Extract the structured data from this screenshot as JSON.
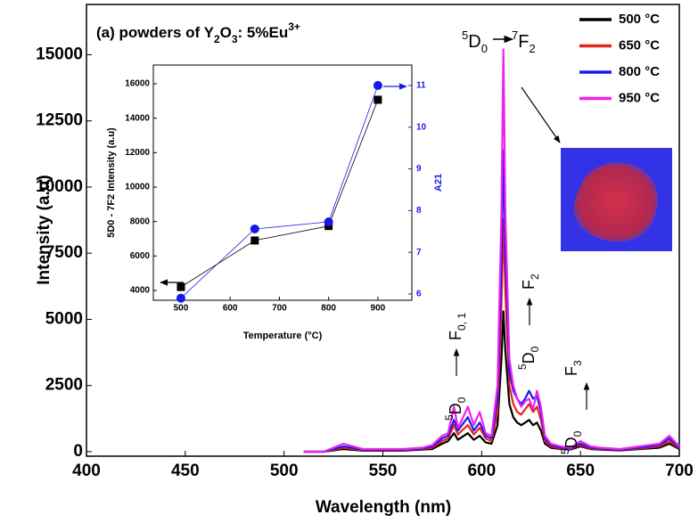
{
  "chart_data": [
    {
      "type": "line",
      "title_parts": [
        "(a) powders of Y",
        "2",
        "O",
        "3",
        ": 5%Eu",
        "3+"
      ],
      "peak_main": [
        "5",
        "D",
        "0",
        "7",
        "F",
        "2"
      ],
      "peak_01": [
        "5",
        "D",
        "0",
        "F",
        "0, 1"
      ],
      "peak_2": [
        "5",
        "D",
        "0",
        "F",
        "2"
      ],
      "peak_3": [
        "5",
        "D",
        "0",
        "F",
        "3"
      ],
      "x_label": "Wavelength (nm)",
      "y_label": "Intensity (a.u)",
      "x": [
        510,
        520,
        530,
        540,
        550,
        560,
        570,
        575,
        580,
        583,
        586,
        588,
        590,
        593,
        596,
        599,
        602,
        605,
        608,
        610,
        611,
        612,
        614,
        616,
        618,
        620,
        622,
        624,
        626,
        628,
        630,
        632,
        635,
        640,
        645,
        650,
        655,
        660,
        670,
        680,
        690,
        695,
        700
      ],
      "series": [
        {
          "name": "500 °C",
          "color": "#000000",
          "values": [
            0,
            0,
            100,
            40,
            40,
            40,
            80,
            100,
            300,
            400,
            700,
            450,
            550,
            700,
            450,
            600,
            350,
            300,
            1000,
            3500,
            5300,
            3800,
            1800,
            1300,
            1100,
            1000,
            1100,
            1200,
            1000,
            1100,
            800,
            300,
            150,
            100,
            80,
            200,
            100,
            80,
            50,
            100,
            150,
            300,
            100
          ]
        },
        {
          "name": "650 °C",
          "color": "#e8231a",
          "values": [
            0,
            0,
            150,
            60,
            60,
            60,
            100,
            150,
            400,
            500,
            1000,
            650,
            800,
            1000,
            650,
            900,
            500,
            400,
            1500,
            5500,
            8800,
            6000,
            2500,
            1800,
            1500,
            1400,
            1600,
            1800,
            1500,
            1700,
            1200,
            400,
            200,
            120,
            100,
            250,
            120,
            100,
            70,
            120,
            200,
            400,
            120
          ]
        },
        {
          "name": "800 °C",
          "color": "#1a1ae8",
          "values": [
            0,
            0,
            200,
            80,
            80,
            80,
            120,
            200,
            500,
            600,
            1200,
            800,
            1000,
            1300,
            800,
            1100,
            600,
            500,
            2000,
            7000,
            11400,
            7500,
            3000,
            2300,
            2000,
            1800,
            2000,
            2300,
            2000,
            2100,
            1500,
            500,
            250,
            150,
            120,
            300,
            150,
            120,
            80,
            150,
            250,
            500,
            150
          ]
        },
        {
          "name": "950 °C",
          "color": "#f020f0",
          "values": [
            0,
            0,
            300,
            100,
            100,
            100,
            150,
            250,
            600,
            700,
            1700,
            900,
            1200,
            1700,
            1000,
            1500,
            700,
            600,
            2500,
            9000,
            15200,
            9000,
            3500,
            2500,
            2000,
            1700,
            1900,
            2000,
            1600,
            2300,
            1700,
            600,
            300,
            200,
            150,
            400,
            200,
            150,
            100,
            200,
            300,
            600,
            200
          ]
        }
      ],
      "xlim": [
        400,
        700
      ],
      "xticks": [
        400,
        450,
        500,
        550,
        600,
        650,
        700
      ],
      "ylim": [
        -170,
        16900
      ],
      "yticks": [
        0,
        2500,
        5000,
        7500,
        10000,
        12500,
        15000
      ]
    },
    {
      "type": "line",
      "x_label": "Temperature (°C)",
      "y_label": "5D0 -  7F2 Intensity (a.u)",
      "y2_label": "A21",
      "x": [
        500,
        650,
        800,
        900
      ],
      "series": [
        {
          "color": "#000000",
          "marker": "square",
          "values": [
            4200,
            6900,
            7740,
            15070
          ]
        },
        {
          "color": "#1a1ae8",
          "marker": "circle",
          "axis": "y2",
          "values": [
            5.9,
            7.56,
            7.73,
            11.0
          ]
        }
      ],
      "xlim": [
        444,
        969
      ],
      "xticks": [
        500,
        600,
        700,
        800,
        900
      ],
      "ylim": [
        3431,
        17086
      ],
      "yticks": [
        4000,
        6000,
        8000,
        10000,
        12000,
        14000,
        16000
      ],
      "y2lim": [
        5.85,
        11.49
      ],
      "y2ticks": [
        6,
        7,
        8,
        9,
        10,
        11
      ]
    }
  ]
}
